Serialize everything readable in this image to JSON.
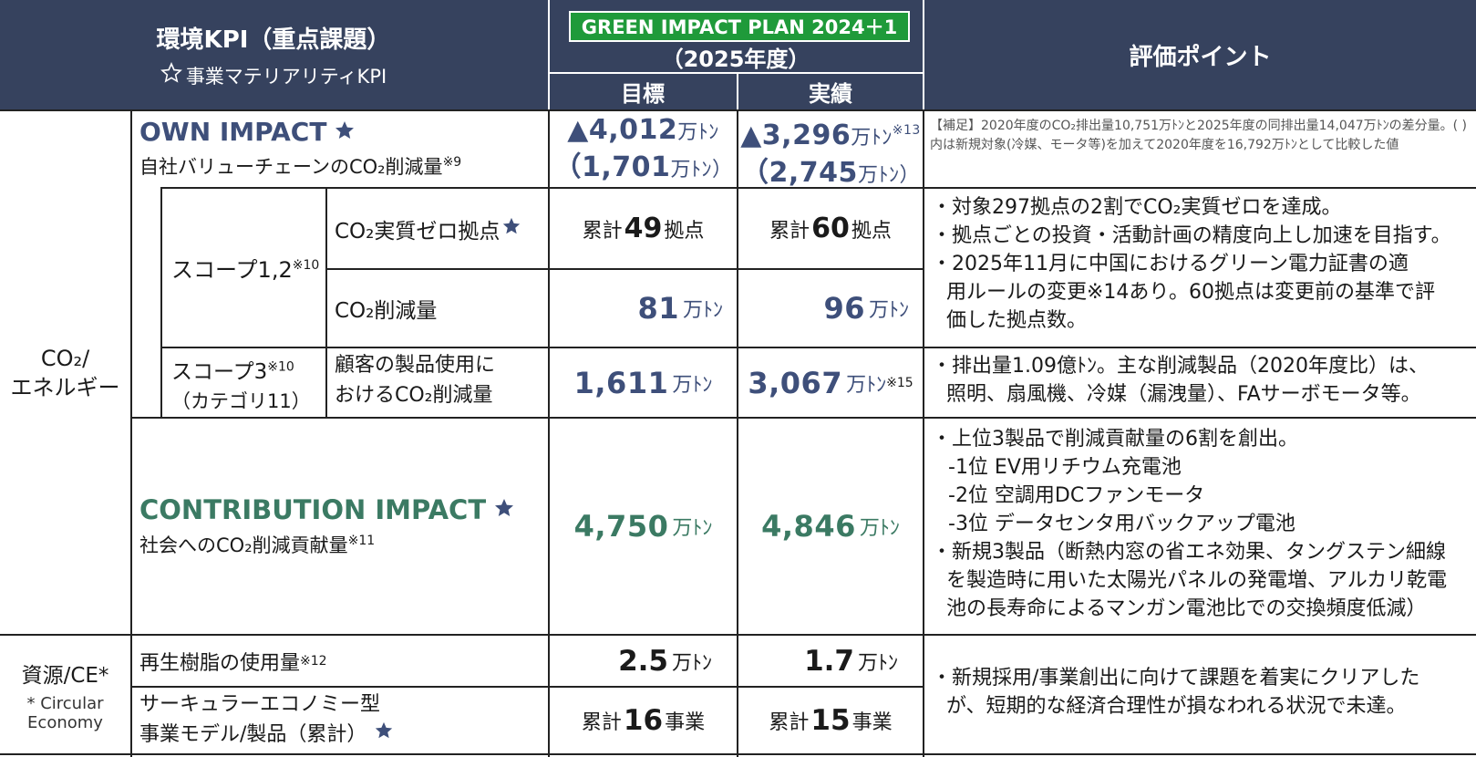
{
  "header": {
    "kpi_title": "環境KPI（重点課題）",
    "kpi_subtitle": "事業マテリアリティKPI",
    "plan_badge": "GREEN IMPACT PLAN 2024＋1",
    "plan_year": "（2025年度）",
    "col_target": "目標",
    "col_actual": "実績",
    "col_eval": "評価ポイント"
  },
  "categories": {
    "co2_line1": "CO₂/",
    "co2_line2": "エネルギー",
    "resource": "資源/CE*",
    "ce_note_line1": "* Circular",
    "ce_note_line2": "Economy"
  },
  "own_impact": {
    "title": "OWN IMPACT",
    "desc": "自社バリューチェーンのCO₂削減量",
    "desc_note": "※9",
    "target_value": "▲4,012",
    "target_sub": "（1,701",
    "actual_value": "▲3,296",
    "actual_note": "※13",
    "actual_sub": "（2,745",
    "unit": "万ﾄﾝ",
    "unit_close": "万ﾄﾝ）",
    "eval_note": "【補足】2020年度のCO₂排出量10,751万ﾄﾝと2025年度の同排出量14,047万ﾄﾝの差分量。( )内は新規対象(冷媒、モータ等)を加えて2020年度を16,792万ﾄﾝとして比較した値"
  },
  "scope12": {
    "label": "スコープ1,2",
    "note": "※10",
    "row1_item": "CO₂実質ゼロ拠点",
    "row1_target_prefix": "累計",
    "row1_target_value": "49",
    "row1_target_unit": "拠点",
    "row1_actual_prefix": "累計",
    "row1_actual_value": "60",
    "row1_actual_unit": "拠点",
    "row2_item": "CO₂削減量",
    "row2_target_value": "81",
    "row2_actual_value": "96",
    "unit": "万ﾄﾝ",
    "eval": [
      "・対象297拠点の2割でCO₂実質ゼロを達成。",
      "・拠点ごとの投資・活動計画の精度向上し加速を目指す。",
      "・2025年11月に中国におけるグリーン電力証書の適",
      "用ルールの変更※14あり。60拠点は変更前の基準で評",
      "価した拠点数。"
    ]
  },
  "scope3": {
    "label": "スコープ3",
    "note": "※10",
    "category": "（カテゴリ11）",
    "item_line1": "顧客の製品使用に",
    "item_line2": "おけるCO₂削減量",
    "target_value": "1,611",
    "actual_value": "3,067",
    "actual_note": "※15",
    "unit": "万ﾄﾝ",
    "eval": [
      "・排出量1.09億ﾄﾝ。主な削減製品（2020年度比）は、",
      "照明、扇風機、冷媒（漏洩量）、FAサーボモータ等。"
    ]
  },
  "contribution": {
    "title": "CONTRIBUTION IMPACT",
    "desc": "社会へのCO₂削減貢献量",
    "desc_note": "※11",
    "target_value": "4,750",
    "actual_value": "4,846",
    "unit": "万ﾄﾝ",
    "eval": [
      "・上位3製品で削減貢献量の6割を創出。",
      "-1位 EV用リチウム充電池",
      "-2位 空調用DCファンモータ",
      "-3位 データセンタ用バックアップ電池",
      "・新規3製品（断熱内窓の省エネ効果、タングステン細線",
      "を製造時に用いた太陽光パネルの発電増、アルカリ乾電",
      "池の長寿命によるマンガン電池比での交換頻度低減）"
    ]
  },
  "resin": {
    "item": "再生樹脂の使用量",
    "note": "※12",
    "target_value": "2.5",
    "actual_value": "1.7",
    "unit": "万ﾄﾝ"
  },
  "circular": {
    "item_line1": "サーキュラーエコノミー型",
    "item_line2": "事業モデル/製品（累計）",
    "target_prefix": "累計",
    "target_value": "16",
    "target_unit": "事業",
    "actual_prefix": "累計",
    "actual_value": "15",
    "actual_unit": "事業",
    "eval_line1": "・新規採用/事業創出に向けて課題を着実にクリアした",
    "eval_line2": "が、短期的な経済合理性が損なわれる状況で未達。"
  },
  "colors": {
    "header_bg": "#36425e",
    "badge_bg": "#1f9a3a",
    "navy_value": "#3e4f7a",
    "green_value": "#3b7a63",
    "note_bg": "#f0f0f0"
  },
  "icons": {
    "star": "star-icon"
  }
}
